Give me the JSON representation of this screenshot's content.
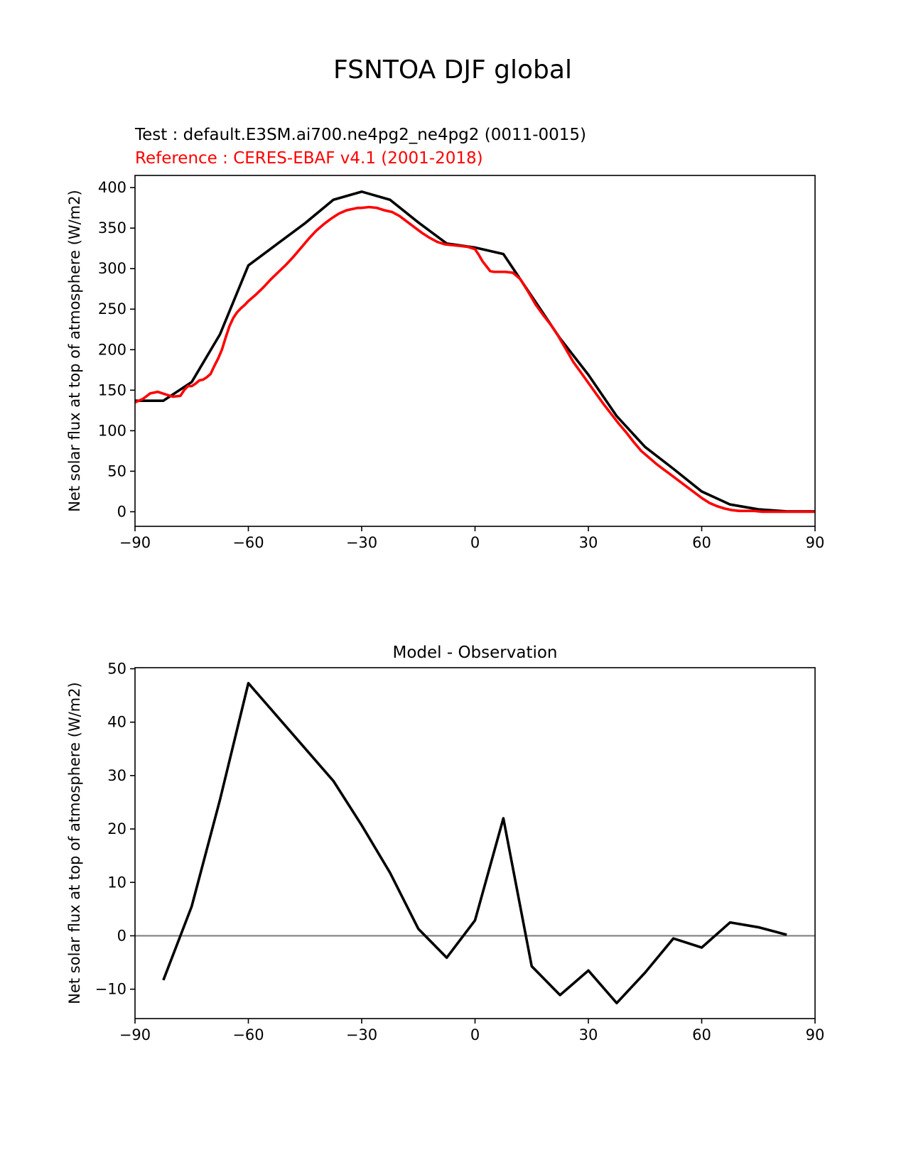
{
  "figure": {
    "title": "FSNTOA DJF global",
    "test_label": "Test : default.E3SM.ai700.ne4pg2_ne4pg2 (0011-0015)",
    "reference_label": "Reference : CERES-EBAF v4.1 (2001-2018)",
    "test_color": "#000000",
    "reference_color": "#ff0000",
    "zero_line_color": "#808080"
  },
  "chart_data": [
    {
      "type": "line",
      "title": "",
      "xlabel": "",
      "ylabel": "Net solar flux at top of atmosphere (W/m2)",
      "xlim": [
        -90,
        90
      ],
      "ylim": [
        -18,
        415
      ],
      "xticks": [
        -90,
        -60,
        -30,
        0,
        30,
        60,
        90
      ],
      "xtick_labels": [
        "−90",
        "−60",
        "−30",
        "0",
        "30",
        "60",
        "90"
      ],
      "yticks": [
        0,
        50,
        100,
        150,
        200,
        250,
        300,
        350,
        400
      ],
      "ytick_labels": [
        "0",
        "50",
        "100",
        "150",
        "200",
        "250",
        "300",
        "350",
        "400"
      ],
      "grid": false,
      "series": [
        {
          "color": "#000000",
          "x": [
            -90,
            -82.5,
            -75,
            -67.5,
            -60,
            -52.5,
            -45,
            -37.5,
            -30,
            -22.5,
            -15,
            -7.5,
            0,
            7.5,
            15,
            22.5,
            30,
            37.5,
            45,
            52.5,
            60,
            67.5,
            75,
            82.5,
            90
          ],
          "y": [
            137,
            137,
            160,
            219,
            304,
            330,
            356,
            385,
            395,
            385,
            357,
            331,
            326,
            318,
            266,
            214,
            169,
            118,
            80,
            53,
            25,
            9,
            3,
            0.5,
            0.5
          ]
        },
        {
          "color": "#ff0000",
          "x": [
            -90,
            -88,
            -86,
            -84,
            -82,
            -80,
            -78,
            -77,
            -76,
            -75,
            -74,
            -73,
            -72,
            -71,
            -70,
            -69,
            -68,
            -67,
            -66,
            -65,
            -64,
            -63,
            -62,
            -61,
            -60,
            -58,
            -56,
            -54,
            -52,
            -50,
            -48,
            -46,
            -44,
            -42,
            -40,
            -38,
            -37,
            -36,
            -35,
            -34,
            -33,
            -32,
            -31,
            -30,
            -28,
            -26,
            -24,
            -22,
            -20,
            -18,
            -16,
            -14,
            -12,
            -10,
            -8,
            -6,
            -4,
            -2,
            0,
            1,
            2,
            3,
            4,
            5,
            6,
            8,
            10,
            12,
            14,
            16,
            18,
            20,
            22,
            24,
            26,
            28,
            30,
            32,
            34,
            36,
            38,
            40,
            42,
            44,
            46,
            48,
            50,
            52,
            54,
            56,
            58,
            60,
            62,
            64,
            66,
            68,
            70,
            72,
            74,
            76,
            78,
            80,
            82,
            84,
            86,
            88,
            90
          ],
          "y": [
            135,
            139,
            146,
            148,
            145,
            142,
            143,
            150,
            155,
            155,
            158,
            162,
            163,
            166,
            170,
            180,
            189,
            200,
            215,
            229,
            239,
            246,
            251,
            255,
            260,
            268,
            277,
            287,
            296,
            305,
            315,
            326,
            337,
            347,
            355,
            362,
            365,
            368,
            370,
            372,
            373,
            374,
            375,
            375,
            376,
            375,
            372,
            370,
            365,
            358,
            351,
            344,
            338,
            333,
            330,
            329,
            328,
            327,
            324,
            317,
            309,
            303,
            297,
            296,
            296,
            296,
            295,
            287,
            272,
            256,
            243,
            231,
            217,
            201,
            185,
            172,
            159,
            146,
            133,
            121,
            109,
            98,
            86,
            75,
            67,
            59,
            52,
            45,
            38,
            31,
            24,
            17,
            11,
            7,
            4,
            2,
            1,
            1,
            1,
            0,
            0,
            0,
            0,
            0,
            0,
            0,
            0
          ]
        }
      ]
    },
    {
      "type": "line",
      "title": "Model - Observation",
      "xlabel": "",
      "ylabel": "Net solar flux at top of atmosphere (W/m2)",
      "xlim": [
        -90,
        90
      ],
      "ylim": [
        -15.5,
        50.2
      ],
      "xticks": [
        -90,
        -60,
        -30,
        0,
        30,
        60,
        90
      ],
      "xtick_labels": [
        "−90",
        "−60",
        "−30",
        "0",
        "30",
        "60",
        "90"
      ],
      "yticks": [
        -10,
        0,
        10,
        20,
        30,
        40,
        50
      ],
      "ytick_labels": [
        "−10",
        "0",
        "10",
        "20",
        "30",
        "40",
        "50"
      ],
      "grid": false,
      "zero_line": 0,
      "series": [
        {
          "color": "#000000",
          "x": [
            -82.5,
            -75,
            -67.5,
            -60,
            -52.5,
            -45,
            -37.5,
            -30,
            -22.5,
            -15,
            -7.5,
            0,
            7.5,
            15,
            22.5,
            30,
            37.5,
            45,
            52.5,
            60,
            67.5,
            75,
            82.5
          ],
          "y": [
            -8.3,
            5.5,
            25.5,
            47.3,
            41.2,
            35.1,
            29.0,
            20.7,
            11.8,
            1.3,
            -4.1,
            2.9,
            22.0,
            -5.7,
            -11.1,
            -6.5,
            -12.6,
            -6.9,
            -0.5,
            -2.2,
            2.5,
            1.6,
            0.2
          ]
        }
      ]
    }
  ]
}
